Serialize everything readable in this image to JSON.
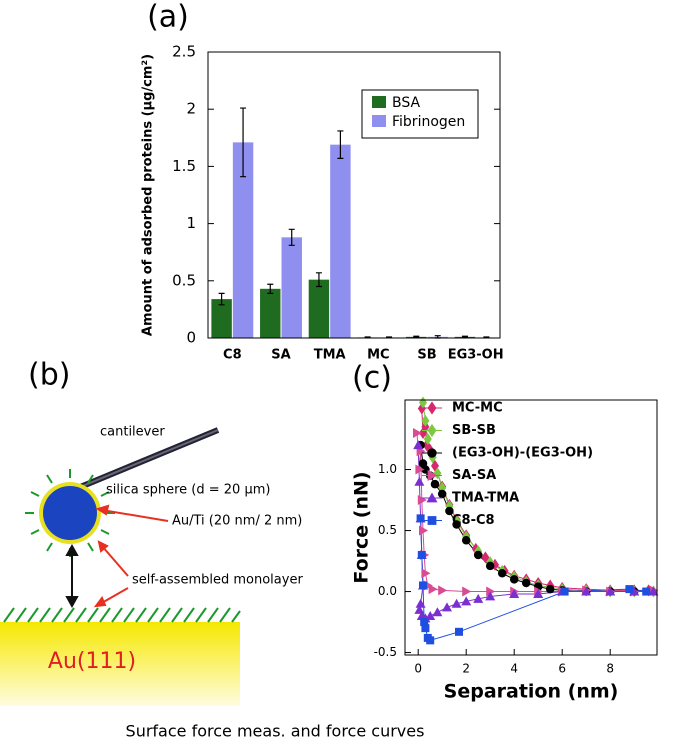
{
  "chart_data": [
    {
      "type": "bar",
      "label": "(a)",
      "ylabel": "Amount of adsorbed proteins (μg/cm²)",
      "categories": [
        "C8",
        "SA",
        "TMA",
        "MC",
        "SB",
        "EG3-OH"
      ],
      "series": [
        {
          "name": "BSA",
          "color": "#1f6b1f",
          "values": [
            0.34,
            0.43,
            0.51,
            0.005,
            0.01,
            0.01
          ],
          "errors": [
            0.05,
            0.04,
            0.06,
            0.004,
            0.005,
            0.005
          ]
        },
        {
          "name": "Fibrinogen",
          "color": "#8f8fef",
          "values": [
            1.71,
            0.88,
            1.69,
            0.005,
            0.01,
            0.005
          ],
          "errors": [
            0.3,
            0.07,
            0.12,
            0.004,
            0.01,
            0.004
          ]
        }
      ],
      "ylim": [
        0,
        2.5
      ],
      "yticks": [
        0,
        0.5,
        1,
        1.5,
        2,
        2.5
      ]
    },
    {
      "type": "line",
      "label": "(c)",
      "xlabel": "Separation (nm)",
      "ylabel": "Force (nN)",
      "series": [
        {
          "name": "MC-MC",
          "color": "#d6286e",
          "marker": "diamond",
          "x": [
            0.15,
            0.2,
            0.3,
            0.35,
            0.5,
            0.7,
            1.0,
            1.3,
            1.6,
            2.0,
            2.4,
            2.8,
            3.2,
            3.6,
            4.0,
            4.5,
            5.0,
            5.5,
            6.0,
            7.0,
            8.0,
            9.0,
            9.6
          ],
          "values": [
            1.5,
            1.3,
            1.35,
            1.2,
            1.16,
            1.03,
            0.86,
            0.71,
            0.59,
            0.46,
            0.35,
            0.28,
            0.22,
            0.17,
            0.13,
            0.1,
            0.07,
            0.05,
            0.03,
            0.02,
            0.01,
            0.01,
            0.01
          ]
        },
        {
          "name": "SB-SB",
          "color": "#7cc840",
          "marker": "diamond",
          "x": [
            0.2,
            0.3,
            0.4,
            0.6,
            0.8,
            1.0,
            1.3,
            1.6,
            2.0,
            2.5,
            3.0,
            3.5,
            4.0,
            4.5,
            5.0,
            6.0,
            7.0,
            8.0,
            9.0,
            9.8
          ],
          "values": [
            1.55,
            1.4,
            1.25,
            1.1,
            0.97,
            0.85,
            0.7,
            0.58,
            0.45,
            0.33,
            0.24,
            0.17,
            0.12,
            0.08,
            0.05,
            0.02,
            0.01,
            0,
            0,
            0
          ]
        },
        {
          "name": "(EG3-OH)-(EG3-OH)",
          "color": "#000000",
          "marker": "circle",
          "x": [
            0.1,
            0.2,
            0.3,
            0.5,
            0.7,
            1.0,
            1.3,
            1.6,
            2.0,
            2.5,
            3.0,
            3.5,
            4.0,
            4.5,
            5.0,
            5.5,
            6.0,
            7.0,
            8.0,
            9.0
          ],
          "values": [
            1.2,
            1.05,
            1.0,
            0.95,
            0.88,
            0.8,
            0.66,
            0.55,
            0.42,
            0.3,
            0.21,
            0.15,
            0.1,
            0.07,
            0.04,
            0.02,
            0.01,
            0,
            0,
            0
          ]
        },
        {
          "name": "SA-SA",
          "color": "#d94c94",
          "marker": "triangle-right",
          "x": [
            -0.05,
            0.05,
            0.1,
            0.15,
            0.2,
            0.25,
            0.3,
            0.4,
            0.6,
            1,
            2,
            3,
            4,
            5,
            6,
            7,
            8,
            9,
            9.8
          ],
          "values": [
            1.3,
            1.0,
            1.15,
            0.75,
            0.5,
            0.3,
            0.15,
            0.05,
            0.02,
            0.01,
            0,
            0,
            0,
            0,
            0,
            0.01,
            0,
            0,
            0.01
          ]
        },
        {
          "name": "TMA-TMA",
          "color": "#7a2fd0",
          "marker": "triangle-up",
          "x": [
            0.0,
            0.05,
            0.1,
            0.15,
            0.2,
            0.1,
            0.05,
            0.15,
            0.3,
            0.5,
            0.8,
            1.2,
            1.6,
            2.0,
            2.5,
            3.0,
            4.0,
            5.0,
            6.0,
            7.0,
            8.0,
            9.0,
            9.8
          ],
          "values": [
            1.2,
            0.9,
            0.6,
            0.3,
            0.05,
            -0.1,
            -0.15,
            -0.2,
            -0.22,
            -0.2,
            -0.17,
            -0.13,
            -0.1,
            -0.08,
            -0.06,
            -0.04,
            -0.02,
            -0.02,
            0,
            0,
            0,
            0,
            0
          ]
        },
        {
          "name": "C8-C8",
          "color": "#1f4fe0",
          "marker": "square",
          "x": [
            0.1,
            0.15,
            0.2,
            0.25,
            0.3,
            0.4,
            0.5,
            1.7,
            6.1,
            8.8,
            9.5
          ],
          "values": [
            0.6,
            0.3,
            0.05,
            -0.25,
            -0.3,
            -0.38,
            -0.4,
            -0.33,
            0,
            0.02,
            0
          ]
        }
      ],
      "xlim": [
        -0.55,
        9.95
      ],
      "xticks": [
        0,
        2,
        4,
        6,
        8
      ],
      "ylim": [
        -0.52,
        1.57
      ],
      "yticks": [
        -0.5,
        {
          "value": 0,
          "label": "0.0"
        },
        0.5,
        {
          "value": 1,
          "label": "1.0"
        }
      ]
    }
  ],
  "diagram": {
    "label": "(b)",
    "cantilever": "cantilever",
    "sphere": "silica sphere (d = 20 μm)",
    "coating": "Au/Ti (20 nm/ 2 nm)",
    "monolayer": "self-assembled monolayer",
    "substrate": "Au(111)"
  },
  "caption": "Surface force meas. and force curves"
}
